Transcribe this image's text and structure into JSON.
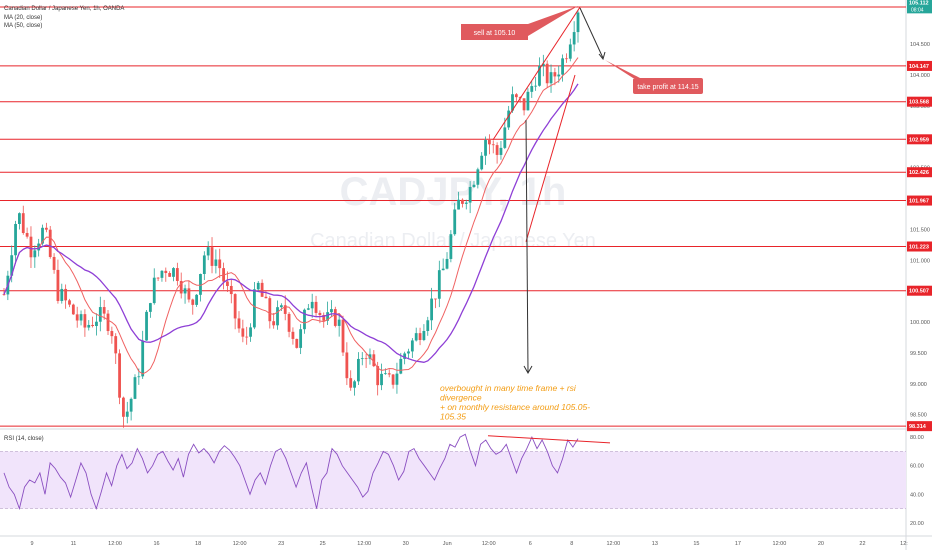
{
  "header": {
    "symbol_line": "Canadian Dollar / Japanese Yen, 1h, OANDA",
    "ma20_label": "MA (20, close)",
    "ma50_label": "MA (50, close)",
    "rsi_label": "RSI (14, close)"
  },
  "watermark": {
    "ticker": "CADJPY, 1h",
    "name": "Canadian Dollar / Japanese Yen"
  },
  "colors": {
    "up_candle": "#26a69a",
    "down_candle": "#ef5350",
    "ma20": "#f06262",
    "ma50": "#8e3fd6",
    "level_line": "#e8242a",
    "annotation_fill": "#e05a5e",
    "rsi_line": "#8a4fc1",
    "rsi_band": "#f1e4fb",
    "note_text": "#f39c12",
    "arrow": "#333333"
  },
  "chart_data": {
    "type": "candlestick",
    "y_range": [
      98.3,
      105.15
    ],
    "price_axis_ticks": [
      "104.500",
      "104.000",
      "103.500",
      "103.000",
      "102.500",
      "102.000",
      "101.500",
      "101.000",
      "100.500",
      "100.000",
      "99.500",
      "99.000",
      "98.500"
    ],
    "price_axis_tick_values": [
      104.5,
      104.0,
      103.5,
      103.0,
      102.5,
      102.0,
      101.5,
      101.0,
      100.5,
      100.0,
      99.5,
      99.0,
      98.5
    ],
    "current_price": {
      "label": "105.112",
      "sub": "08:04",
      "value": 105.112
    },
    "levels": [
      {
        "value": 105.102,
        "label": "105.102"
      },
      {
        "value": 104.147,
        "label": "104.147"
      },
      {
        "value": 103.568,
        "label": "103.568"
      },
      {
        "value": 102.959,
        "label": "102.959"
      },
      {
        "value": 102.426,
        "label": "102.426"
      },
      {
        "value": 101.967,
        "label": "101.967"
      },
      {
        "value": 101.223,
        "label": "101.223"
      },
      {
        "value": 100.507,
        "label": "100.507"
      },
      {
        "value": 98.314,
        "label": "98.314"
      }
    ],
    "x_axis_labels": [
      "9",
      "11",
      "12:00",
      "16",
      "18",
      "12:00",
      "23",
      "25",
      "12:00",
      "30",
      "Jun",
      "12:00",
      "6",
      "8",
      "12:00",
      "13",
      "15",
      "17",
      "12:00",
      "20",
      "22",
      "12:"
    ],
    "candle_count": 150,
    "close_path": [
      100.45,
      101.8,
      101.2,
      101.5,
      100.5,
      100.2,
      99.9,
      100.1,
      100.0,
      98.4,
      99.1,
      100.5,
      100.9,
      100.8,
      100.2,
      101.1,
      101.0,
      100.3,
      99.6,
      100.6,
      100.0,
      100.2,
      99.6,
      100.5,
      100.0,
      100.1,
      98.8,
      99.6,
      99.1,
      99.0,
      99.5,
      99.8,
      100.3,
      100.9,
      101.9,
      102.2,
      103.0,
      102.7,
      103.6,
      103.5,
      104.1,
      103.9,
      104.3,
      105.1
    ],
    "rsi": {
      "range": [
        15,
        85
      ],
      "ticks": [
        "80.00",
        "60.00",
        "40.00",
        "20.00"
      ],
      "tick_values": [
        80,
        60,
        40,
        20
      ],
      "band": [
        30,
        70
      ],
      "values": [
        55,
        45,
        40,
        30,
        45,
        50,
        48,
        55,
        40,
        62,
        58,
        52,
        48,
        38,
        50,
        62,
        55,
        40,
        30,
        42,
        55,
        46,
        60,
        68,
        58,
        62,
        72,
        65,
        55,
        60,
        68,
        70,
        63,
        57,
        65,
        52,
        68,
        75,
        69,
        72,
        68,
        62,
        70,
        74,
        71,
        66,
        60,
        50,
        40,
        50,
        55,
        47,
        60,
        70,
        72,
        65,
        55,
        45,
        55,
        62,
        45,
        30,
        50,
        55,
        72,
        68,
        60,
        55,
        50,
        45,
        38,
        42,
        55,
        62,
        70,
        68,
        60,
        50,
        56,
        70,
        72,
        65,
        60,
        55,
        50,
        58,
        65,
        75,
        73,
        80,
        82,
        70,
        60,
        75,
        78,
        72,
        68,
        70,
        75,
        65,
        55,
        65,
        72,
        80,
        72,
        78,
        70,
        60,
        55,
        65,
        78,
        73,
        79
      ]
    },
    "annotations": {
      "sell": "sell at 105.10",
      "take_profit": "take profit at 114.15",
      "note_lines": [
        "overbought in many time frame + rsi",
        "divergence",
        "+ on monthly resistance around 105.05-",
        "105.35"
      ]
    }
  }
}
